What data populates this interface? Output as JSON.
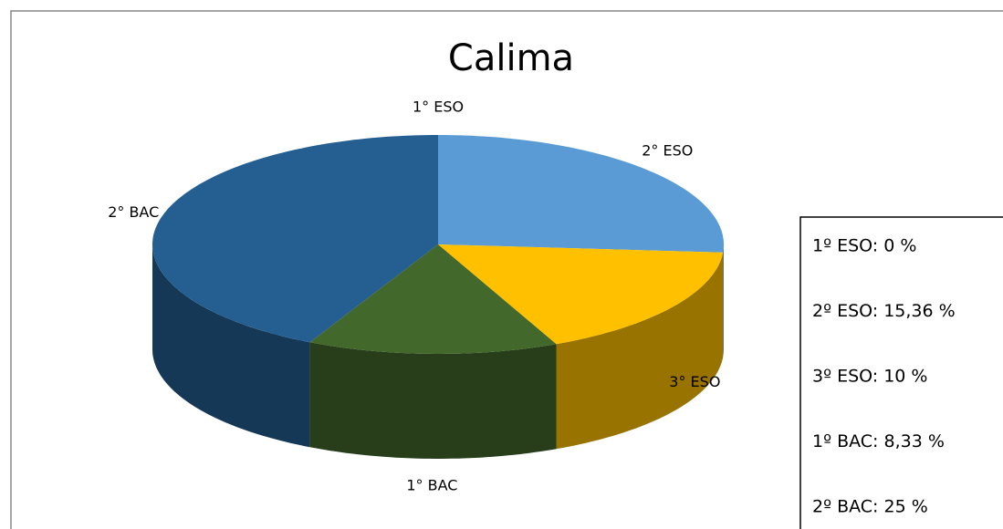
{
  "chart_data": {
    "type": "pie3d",
    "title": "Calima",
    "categories": [
      "1° ESO",
      "2° ESO",
      "3° ESO",
      "1° BAC",
      "2° BAC"
    ],
    "values": [
      0,
      15.36,
      10,
      8.33,
      25
    ],
    "value_labels": [
      "1º ESO: 0 %",
      "2º ESO: 15,36 %",
      "3º ESO: 10 %",
      "1º BAC: 8,33 %",
      "2º BAC: 25 %"
    ],
    "colors": [
      "#a5a5a5",
      "#5b9bd5",
      "#ffc000",
      "#43682b",
      "#255e91"
    ],
    "legend": "right"
  }
}
